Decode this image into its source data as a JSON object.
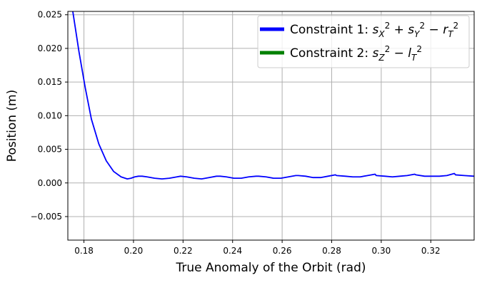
{
  "chart_data": {
    "type": "line",
    "title": "",
    "xlabel": "True Anomaly of the Orbit (rad)",
    "ylabel": "Position (m)",
    "xlim": [
      0.1735,
      0.3375
    ],
    "ylim": [
      -0.0085,
      0.0255
    ],
    "grid": true,
    "legend_position": "top-right",
    "x_ticks": [
      0.18,
      0.2,
      0.22,
      0.24,
      0.26,
      0.28,
      0.3,
      0.32
    ],
    "x_tick_labels": [
      "0.18",
      "0.20",
      "0.22",
      "0.24",
      "0.26",
      "0.28",
      "0.30",
      "0.32"
    ],
    "y_ticks": [
      -0.005,
      0.0,
      0.005,
      0.01,
      0.015,
      0.02,
      0.025
    ],
    "y_tick_labels": [
      "−0.005",
      "0.000",
      "0.005",
      "0.010",
      "0.015",
      "0.020",
      "0.025"
    ],
    "series": [
      {
        "name": "Constraint 1: s_X^2 + s_Y^2 − r_T^2",
        "color": "#0000ff",
        "x": [
          0.1755,
          0.178,
          0.1805,
          0.183,
          0.186,
          0.189,
          0.192,
          0.195,
          0.1975,
          0.199,
          0.2005,
          0.202,
          0.2035,
          0.2055,
          0.2085,
          0.2115,
          0.2145,
          0.2175,
          0.219,
          0.2215,
          0.2245,
          0.2275,
          0.2305,
          0.2335,
          0.235,
          0.2375,
          0.2405,
          0.2435,
          0.2465,
          0.2495,
          0.2505,
          0.2535,
          0.2565,
          0.2595,
          0.2625,
          0.2655,
          0.2665,
          0.2695,
          0.2725,
          0.2755,
          0.2785,
          0.2815,
          0.282,
          0.2855,
          0.2885,
          0.2915,
          0.2945,
          0.2975,
          0.298,
          0.3015,
          0.3045,
          0.3075,
          0.3105,
          0.3135,
          0.314,
          0.3175,
          0.3205,
          0.3235,
          0.3265,
          0.3295,
          0.33,
          0.3335,
          0.3375
        ],
        "values": [
          0.0255,
          0.0195,
          0.0142,
          0.0095,
          0.0058,
          0.0033,
          0.0017,
          0.0009,
          0.0006,
          0.0007,
          0.0009,
          0.001,
          0.001,
          0.0009,
          0.0007,
          0.0006,
          0.0007,
          0.0009,
          0.001,
          0.0009,
          0.0007,
          0.0006,
          0.0008,
          0.001,
          0.001,
          0.0009,
          0.0007,
          0.0007,
          0.0009,
          0.001,
          0.001,
          0.0009,
          0.0007,
          0.0007,
          0.0009,
          0.0011,
          0.0011,
          0.001,
          0.0008,
          0.0008,
          0.001,
          0.0012,
          0.0011,
          0.001,
          0.0009,
          0.0009,
          0.0011,
          0.0013,
          0.0011,
          0.001,
          0.0009,
          0.001,
          0.0011,
          0.0013,
          0.0012,
          0.001,
          0.001,
          0.001,
          0.0011,
          0.0014,
          0.0012,
          0.0011,
          0.001
        ]
      },
      {
        "name": "Constraint 2: s_Z^2 − l_T^2",
        "color": "#008000",
        "x": [],
        "values": []
      }
    ]
  }
}
